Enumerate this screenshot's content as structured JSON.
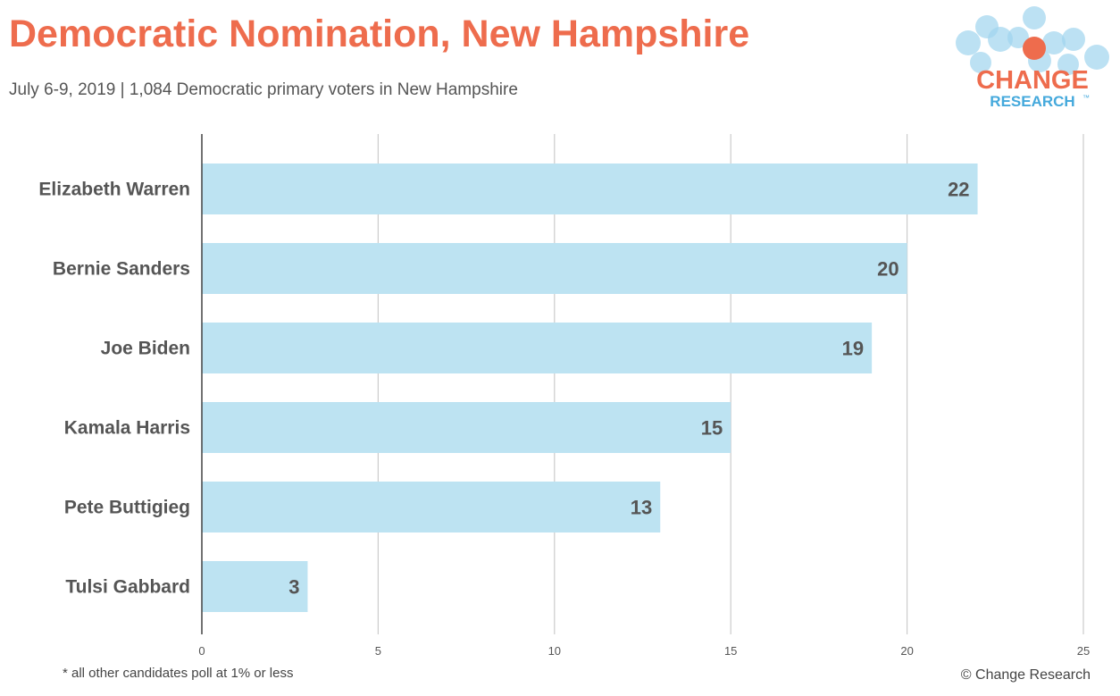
{
  "header": {
    "title": "Democratic Nomination, New Hampshire",
    "subtitle": "July 6-9, 2019  | 1,084 Democratic primary voters in New Hampshire"
  },
  "logo": {
    "line1": "CHANGE",
    "line2": "RESEARCH",
    "trademark": "™"
  },
  "footer": {
    "note": "* all other candidates poll at 1% or less",
    "credit": "© Change Research"
  },
  "colors": {
    "bar": "#bde3f2",
    "title": "#ee6c4d",
    "label": "#555555",
    "grid": "#cccccc",
    "logo_blue": "#45a9dc",
    "logo_orange": "#ee6c4d"
  },
  "chart_data": {
    "type": "bar",
    "orientation": "horizontal",
    "title": "Democratic Nomination, New Hampshire",
    "xlabel": "",
    "ylabel": "",
    "categories": [
      "Elizabeth Warren",
      "Bernie Sanders",
      "Joe Biden",
      "Kamala Harris",
      "Pete Buttigieg",
      "Tulsi Gabbard"
    ],
    "values": [
      22,
      20,
      19,
      15,
      13,
      3
    ],
    "xlim": [
      0,
      25
    ],
    "ticks": [
      0,
      5,
      10,
      15,
      20,
      25
    ],
    "grid": true,
    "legend": "none"
  }
}
